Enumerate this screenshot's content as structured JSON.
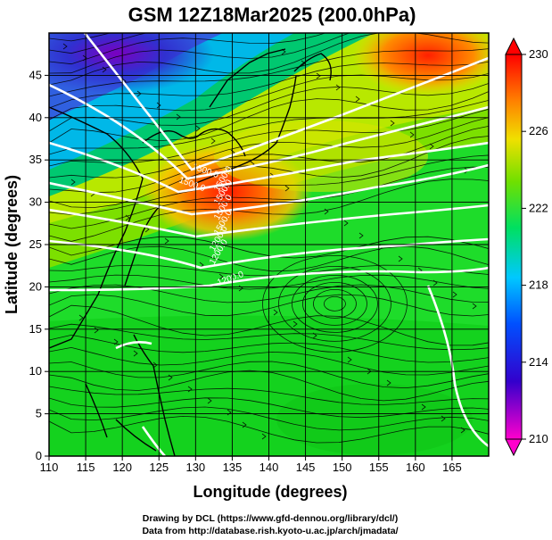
{
  "title": "GSM 12Z18Mar2025 (200.0hPa)",
  "x_axis": {
    "label": "Longitude (degrees)",
    "range": [
      110,
      170
    ],
    "ticks": [
      "110",
      "115",
      "120",
      "125",
      "130",
      "135",
      "140",
      "145",
      "150",
      "155",
      "160",
      "165"
    ]
  },
  "y_axis": {
    "label": "Latitude  (degrees)",
    "range": [
      0,
      50
    ],
    "ticks": [
      "0",
      "5",
      "10",
      "15",
      "20",
      "25",
      "30",
      "35",
      "40",
      "45"
    ]
  },
  "colorbar": {
    "min": 210,
    "max": 230,
    "ticks": [
      "210",
      "214",
      "218",
      "222",
      "226",
      "230"
    ],
    "colors": [
      "#ff00ff",
      "#0000ff",
      "#00c8ff",
      "#00ff60",
      "#80ff00",
      "#ffff00",
      "#ff8000",
      "#ff0000"
    ]
  },
  "contours": {
    "color": "#ffffff",
    "labels": [
      "1500.0",
      "1500.0",
      "1500.0",
      "1500.0",
      "1500.0",
      "1500.0",
      "1200.0",
      "1200.0",
      "1200.0"
    ]
  },
  "credits": {
    "line1": "Drawing by DCL (https://www.gfd-dennou.org/library/dcl/)",
    "line2": "Data from http://database.rish.kyoto-u.ac.jp/arch/jmadata/"
  }
}
